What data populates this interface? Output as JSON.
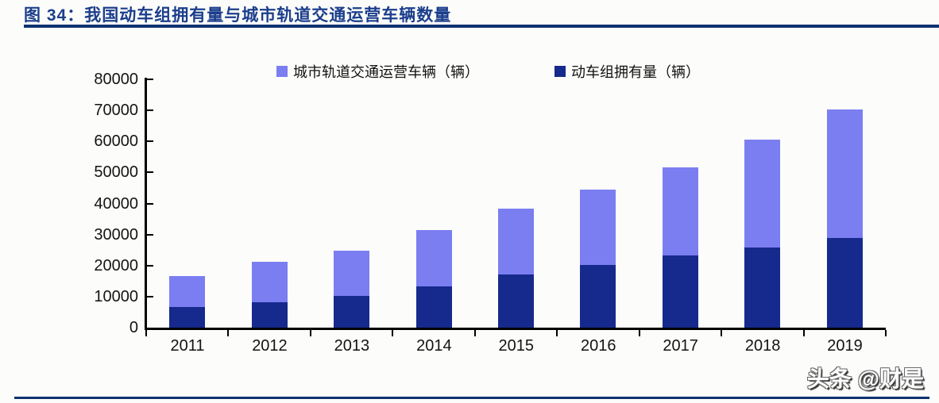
{
  "figure": {
    "title": "图 34：我国动车组拥有量与城市轨道交通运营车辆数量",
    "watermark": "头条 @财是"
  },
  "colors": {
    "rule_navy": "#0e3372",
    "title_navy": "#1b3e8c",
    "axis_black": "#000000",
    "emu_dark": "#16298c",
    "urban_light": "#7b7ef1"
  },
  "chart_data": {
    "type": "bar",
    "stacked": true,
    "categories": [
      "2011",
      "2012",
      "2013",
      "2014",
      "2015",
      "2016",
      "2017",
      "2018",
      "2019"
    ],
    "series": [
      {
        "name": "动车组拥有量（辆）",
        "color": "#16298c",
        "values": [
          6600,
          8100,
          10200,
          13200,
          17200,
          20100,
          23200,
          25800,
          29000
        ]
      },
      {
        "name": "城市轨道交通运营车辆（辆）",
        "color": "#7b7ef1",
        "values": [
          10000,
          13100,
          14600,
          18200,
          21100,
          24400,
          28500,
          34700,
          41300
        ]
      }
    ],
    "legend": [
      {
        "label": "城市轨道交通运营车辆（辆）",
        "color": "#7b7ef1"
      },
      {
        "label": "动车组拥有量（辆）",
        "color": "#16298c"
      }
    ],
    "title": "",
    "xlabel": "",
    "ylabel": "",
    "ylim": [
      0,
      80000
    ],
    "yticks": [
      0,
      10000,
      20000,
      30000,
      40000,
      50000,
      60000,
      70000,
      80000
    ],
    "grid": false,
    "legend_position": "top"
  }
}
